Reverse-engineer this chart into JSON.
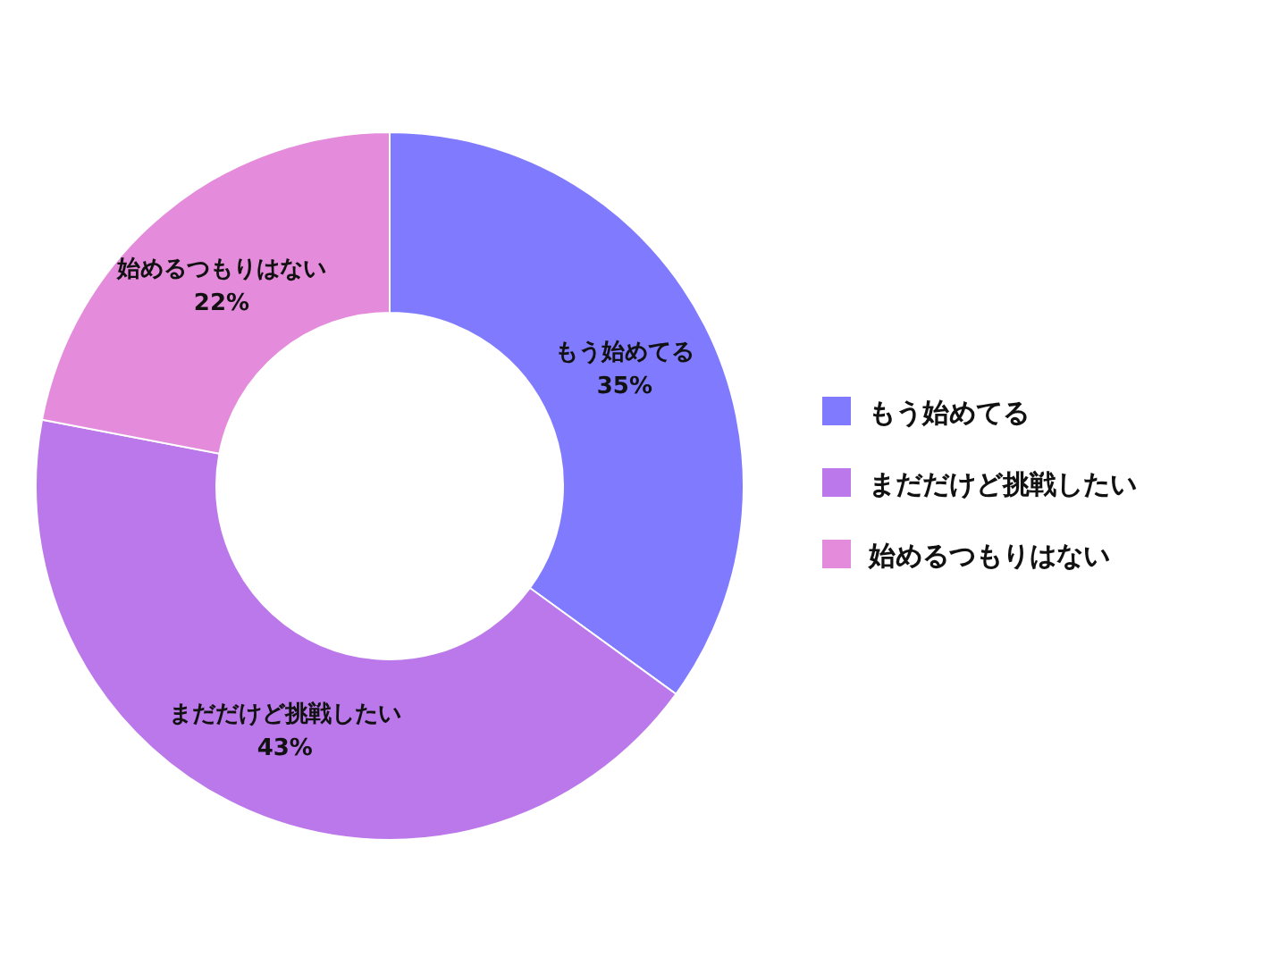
{
  "chart_data": {
    "type": "donut",
    "categories": [
      "もう始めてる",
      "まだだけど挑戦したい",
      "始めるつもりはない"
    ],
    "values": [
      35,
      43,
      22
    ],
    "value_labels": [
      "35%",
      "43%",
      "22%"
    ],
    "colors": [
      "#807aff",
      "#bb78ea",
      "#e48cdb"
    ],
    "legend": "right"
  }
}
